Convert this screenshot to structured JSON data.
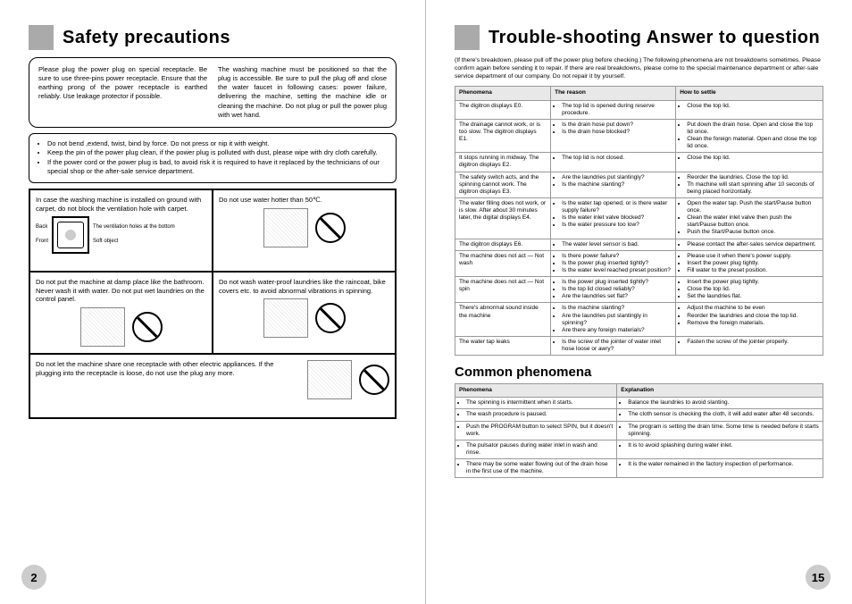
{
  "left": {
    "title": "Safety precautions",
    "topbox_col1": "Please plug the power plug on special receptacle. Be sure to use three-pins power receptacle. Ensure that the earthing prong of the power receptacle is earthed reliably. Use leakage protector if possible.",
    "topbox_col2": "The washing machine must be positioned so that the plug is accessible. Be sure to pull the plug off and close the water faucet in following cases: power failure, delivering the machine, setting the machine idle or cleaning the machine. Do not plug or pull the power plug with wet hand.",
    "bullets": [
      "Do not bend ,extend, twist, bind by force. Do not press or nip it with weight.",
      "Keep the pin of the power plug clean, if the power plug is polluted with dust, please wipe with dry cloth carefully.",
      "If the power cord or the power plug is bad, to avoid risk it is required to have it replaced by the technicians of our special shop or the after-sale service department."
    ],
    "cells": {
      "c1": "In case the washing machine is installed on ground with carpet, do not block the ventilation hole with carpet.",
      "c1_vent": "The ventilation holes at the bottom",
      "c1_soft": "Soft object",
      "c1_back": "Back",
      "c1_front": "Front",
      "c2": "Do not use water hotter than 50℃.",
      "c3": "Do not put the machine at damp place like the bathroom. Never wash it with water. Do not put wet laundries on the control panel.",
      "c4": "Do not wash water-proof laundries like the raincoat, bike covers etc. to avoid abnormal vibrations in spinning.",
      "c5": "Do not let the machine share one receptacle with other electric appliances. If the plugging into the receptacle is loose, do not use the plug any more."
    },
    "pagenum": "2"
  },
  "right": {
    "title": "Trouble-shooting Answer to question",
    "intro": "(If there's breakdown, please pull off the power plug before checking.) The following phenomena are not breakdowns sometimes. Please confirm again before sending it to repair. If there are real breakdowns, please come to the special maintenance department or after-sale service department of our company. Do not repair it by yourself.",
    "th1": "Phenomena",
    "th2": "The reason",
    "th3": "How to settle",
    "rows": [
      {
        "p": "The digitron displays E0.",
        "r": [
          "The top lid is opened during reserve procedure."
        ],
        "s": [
          "Close the top lid."
        ]
      },
      {
        "p": "The drainage cannot work, or is too slow. The digitron displays E1.",
        "r": [
          "Is the drain hose put down?",
          "Is the drain hose blocked?"
        ],
        "s": [
          "Put down the drain hose. Open and close the top lid once.",
          "Clean the foreign material. Open and close the top lid once."
        ]
      },
      {
        "p": "It stops running in midway. The digitron displays E2.",
        "r": [
          "The top lid is not closed."
        ],
        "s": [
          "Close the top lid."
        ]
      },
      {
        "p": "The safety switch acts, and the spinning cannot work. The digitron displays E3.",
        "r": [
          "Are the laundries put slantingly?",
          "Is the machine slanting?"
        ],
        "s": [
          "Reorder the laundries. Close the top lid.",
          "Th machine will start spinning after 10 seconds of being placed horizontally."
        ]
      },
      {
        "p": "The water filling does not work, or is slow. After about 30 minutes later, the digital displays E4.",
        "r": [
          "Is the water tap opened, or is there water supply failure?",
          "Is the water inlet valve blocked?",
          "Is the water pressure too low?"
        ],
        "s": [
          "Open the water tap. Push the start/Pause button once.",
          "Clean the water inlet valve then push the start/Pause button once.",
          "Push the Start/Pause button once."
        ]
      },
      {
        "p": "The digitron displays E6.",
        "r": [
          "The water level sensor is bad."
        ],
        "s": [
          "Please contact the after-sales service department."
        ]
      },
      {
        "p": "The machine does not act — Not wash",
        "r": [
          "Is there power failure?",
          "Is the power plug inserted tightly?",
          "Is the water level reached preset position?"
        ],
        "s": [
          "Please use it when there's power supply.",
          "Insert the power plug tightly.",
          "Fill water to the preset position."
        ]
      },
      {
        "p": "The machine does not act — Not spin",
        "r": [
          "Is the power plug inserted tightly?",
          "Is the top lid closed reliably?",
          "Are the laundries set flat?"
        ],
        "s": [
          "Insert the power plug tightly.",
          "Close the top lid.",
          "Set the laundries flat."
        ]
      },
      {
        "p": "There's abnormal sound inside the machine",
        "r": [
          "Is the machine slanting?",
          "Are the laundries put slantingly in spinning?",
          "Are there any foreign materials?"
        ],
        "s": [
          "Adjust the machine to be even",
          "Reorder the laundries and close the top lid.",
          "Remove the foreign materials."
        ]
      },
      {
        "p": "The water tap leaks",
        "r": [
          "Is the screw of the jointer of water inlet hose loose or awry?"
        ],
        "s": [
          "Fasten the screw of the jointer properly."
        ]
      }
    ],
    "common_title": "Common phenomena",
    "cth1": "Phenomena",
    "cth2": "Explanation",
    "crows": [
      {
        "p": "The spinning is intermittent when it starts.",
        "e": "Balance the laundries to avoid slanting."
      },
      {
        "p": "The wash procedure is paused.",
        "e": "The cloth sensor is checking the cloth, it will add water after 48 seconds."
      },
      {
        "p": "Push the PROGRAM button to select SPIN, but it doesn't work.",
        "e": "The program is setting the drain time. Some time is needed before it starts spinning."
      },
      {
        "p": "The pulsator pauses during water inlet in wash and rinse.",
        "e": "It is to avoid splashing during water inlet."
      },
      {
        "p": "There may be some water flowing out of the drain hose in the first use of the machine.",
        "e": "It is the water remained in the factory inspection of performance."
      }
    ],
    "pagenum": "15"
  },
  "colors": {
    "page_bg": "#ffffff",
    "header_block": "#aaaaaa",
    "th_bg": "#e8e8e8",
    "border": "#999999",
    "pgnum_bg": "#cccccc"
  }
}
